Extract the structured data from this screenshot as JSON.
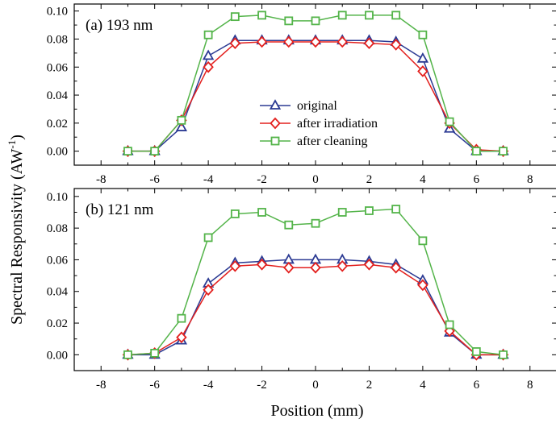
{
  "figure": {
    "ylabel": "Spectral Responsivity (AW",
    "ylabel_sup": "-1",
    "ylabel_close": ")",
    "xlabel": "Position (mm)"
  },
  "chart_data": [
    {
      "type": "line",
      "title": "(a) 193 nm",
      "xlabel": "Position (mm)",
      "ylabel": "Spectral Responsivity (AW-1)",
      "xlim": [
        -9,
        9
      ],
      "ylim": [
        -0.01,
        0.105
      ],
      "xticks": [
        -8,
        -6,
        -4,
        -2,
        0,
        2,
        4,
        6,
        8
      ],
      "yticks": [
        0.0,
        0.02,
        0.04,
        0.06,
        0.08,
        0.1
      ],
      "ytick_labels": [
        "0.00",
        "0.02",
        "0.04",
        "0.06",
        "0.08",
        "0.10"
      ],
      "show_legend": true,
      "legend_position": "center",
      "x": [
        -7,
        -6,
        -5,
        -4,
        -3,
        -2,
        -1,
        0,
        1,
        2,
        3,
        4,
        5,
        6,
        7
      ],
      "series": [
        {
          "name": "original",
          "marker": "triangle",
          "color": "#2b3a93",
          "values": [
            0.0,
            0.0,
            0.017,
            0.068,
            0.079,
            0.079,
            0.079,
            0.079,
            0.079,
            0.079,
            0.078,
            0.066,
            0.016,
            0.0,
            0.0
          ]
        },
        {
          "name": "after irradiation",
          "marker": "diamond",
          "color": "#e3201e",
          "values": [
            0.0,
            0.0,
            0.022,
            0.06,
            0.077,
            0.078,
            0.078,
            0.078,
            0.078,
            0.077,
            0.076,
            0.057,
            0.02,
            0.001,
            0.0
          ]
        },
        {
          "name": "after cleaning",
          "marker": "square",
          "color": "#54b44a",
          "values": [
            0.0,
            0.0,
            0.022,
            0.083,
            0.096,
            0.097,
            0.093,
            0.093,
            0.097,
            0.097,
            0.097,
            0.083,
            0.021,
            0.0,
            0.0
          ]
        }
      ]
    },
    {
      "type": "line",
      "title": "(b) 121 nm",
      "xlabel": "Position (mm)",
      "ylabel": "Spectral Responsivity (AW-1)",
      "xlim": [
        -9,
        9
      ],
      "ylim": [
        -0.01,
        0.105
      ],
      "xticks": [
        -8,
        -6,
        -4,
        -2,
        0,
        2,
        4,
        6,
        8
      ],
      "yticks": [
        0.0,
        0.02,
        0.04,
        0.06,
        0.08,
        0.1
      ],
      "ytick_labels": [
        "0.00",
        "0.02",
        "0.04",
        "0.06",
        "0.08",
        "0.10"
      ],
      "show_legend": false,
      "x": [
        -7,
        -6,
        -5,
        -4,
        -3,
        -2,
        -1,
        0,
        1,
        2,
        3,
        4,
        5,
        6,
        7
      ],
      "series": [
        {
          "name": "original",
          "marker": "triangle",
          "color": "#2b3a93",
          "values": [
            0.0,
            0.0,
            0.009,
            0.045,
            0.058,
            0.059,
            0.06,
            0.06,
            0.06,
            0.059,
            0.057,
            0.047,
            0.014,
            0.0,
            0.0
          ]
        },
        {
          "name": "after irradiation",
          "marker": "diamond",
          "color": "#e3201e",
          "values": [
            0.0,
            0.001,
            0.011,
            0.041,
            0.056,
            0.057,
            0.055,
            0.055,
            0.056,
            0.057,
            0.055,
            0.044,
            0.015,
            0.0,
            0.0
          ]
        },
        {
          "name": "after cleaning",
          "marker": "square",
          "color": "#54b44a",
          "values": [
            0.0,
            0.001,
            0.023,
            0.074,
            0.089,
            0.09,
            0.082,
            0.083,
            0.09,
            0.091,
            0.092,
            0.072,
            0.019,
            0.002,
            0.0
          ]
        }
      ]
    }
  ]
}
